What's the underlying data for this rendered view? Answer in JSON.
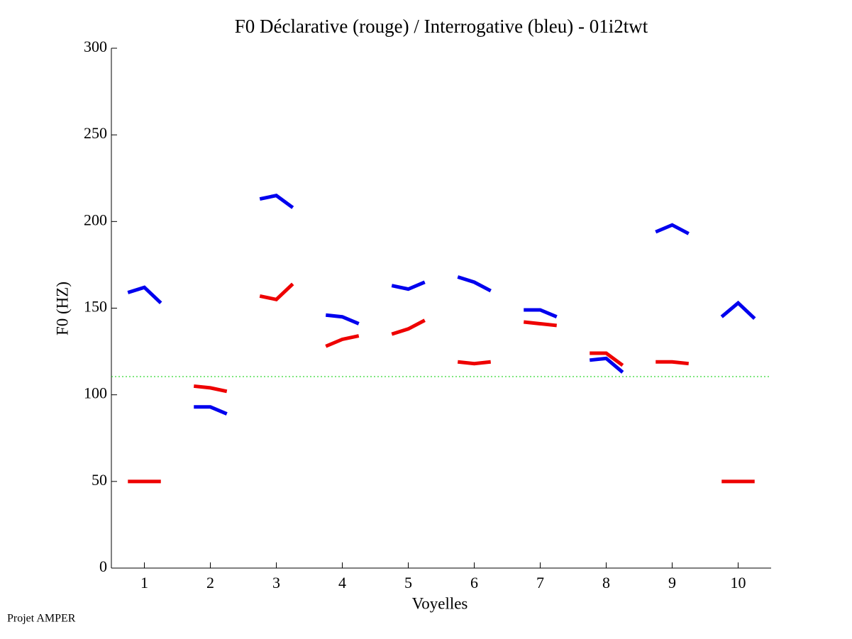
{
  "chart_data": {
    "type": "segments",
    "title": "F0 Déclarative (rouge) / Interrogative (bleu) - 01i2twt",
    "xlabel": "Voyelles",
    "ylabel": "F0 (HZ)",
    "footer": "Projet AMPER",
    "xlim": [
      0.5,
      10.5
    ],
    "xticks": [
      1,
      2,
      3,
      4,
      5,
      6,
      7,
      8,
      9,
      10
    ],
    "ylim": [
      0,
      300
    ],
    "yticks": [
      0,
      50,
      100,
      150,
      200,
      250,
      300
    ],
    "reference_line": {
      "value": 110.5,
      "color": "#00cc00"
    },
    "series": [
      {
        "color": "#0000ee",
        "values": [
          [
            159,
            162,
            153
          ],
          [
            93,
            93,
            89
          ],
          [
            213,
            215,
            208
          ],
          [
            146,
            145,
            141
          ],
          [
            163,
            161,
            165
          ],
          [
            168,
            165,
            160
          ],
          [
            149,
            149,
            145
          ],
          [
            120,
            121,
            113
          ],
          [
            194,
            198,
            193
          ],
          [
            145,
            153,
            144
          ]
        ]
      },
      {
        "color": "#ee0000",
        "values": [
          [
            50,
            50,
            50
          ],
          [
            105,
            104,
            102
          ],
          [
            157,
            155,
            164
          ],
          [
            128,
            132,
            134
          ],
          [
            135,
            138,
            143
          ],
          [
            119,
            118,
            119
          ],
          [
            142,
            141,
            140
          ],
          [
            124,
            124,
            117
          ],
          [
            119,
            119,
            118
          ],
          [
            50,
            50,
            50
          ]
        ]
      }
    ]
  }
}
